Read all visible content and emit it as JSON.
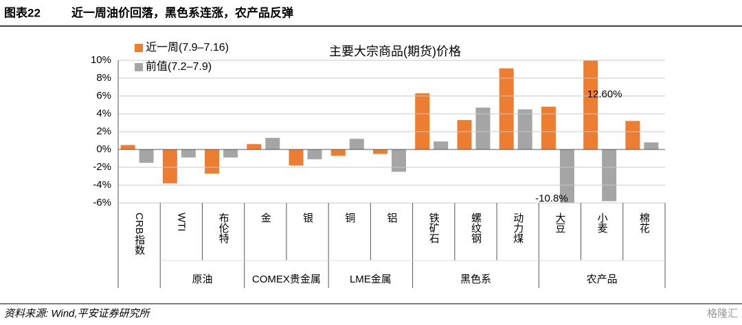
{
  "header": {
    "figure": "图表22",
    "title": "近一周油价回落，黑色系连涨，农产品反弹"
  },
  "footer": {
    "source": "资料来源: Wind,平安证券研究所",
    "watermark": "格隆汇"
  },
  "chart_data": {
    "type": "bar",
    "title": "主要大宗商品(期货)价格",
    "categories": [
      "CRB指数",
      "WTI",
      "布伦特",
      "金",
      "银",
      "铜",
      "铝",
      "铁矿石",
      "螺纹钢",
      "动力煤",
      "大豆",
      "小麦",
      "棉花"
    ],
    "category_groups": [
      null,
      "原油",
      "原油",
      "COMEX贵金属",
      "COMEX贵金属",
      "LME金属",
      "LME金属",
      "黑色系",
      "黑色系",
      "黑色系",
      "农产品",
      "农产品",
      "农产品"
    ],
    "series": [
      {
        "name": "近一周(7.9–7.16)",
        "color": "#ed7d31",
        "values": [
          0.5,
          -3.8,
          -2.7,
          0.6,
          -1.8,
          -0.7,
          -0.5,
          6.3,
          3.3,
          9.1,
          4.8,
          12.6,
          3.2
        ],
        "value_labels": [
          null,
          null,
          null,
          null,
          null,
          null,
          null,
          null,
          null,
          null,
          null,
          "12.60%",
          null
        ]
      },
      {
        "name": "前值(7.2–7.9)",
        "color": "#a5a5a5",
        "values": [
          -1.5,
          -0.9,
          -0.9,
          1.3,
          -1.1,
          1.2,
          -2.5,
          0.9,
          4.7,
          4.5,
          -10.8,
          -5.8,
          0.8
        ],
        "value_labels": [
          null,
          null,
          null,
          null,
          null,
          null,
          null,
          null,
          null,
          null,
          "-10.8%",
          null,
          null
        ]
      }
    ],
    "ylim": [
      -6,
      10
    ],
    "yticks": [
      {
        "value": -6,
        "label": "-6%"
      },
      {
        "value": -4,
        "label": "-4%"
      },
      {
        "value": -2,
        "label": "-2%"
      },
      {
        "value": 0,
        "label": "0%"
      },
      {
        "value": 2,
        "label": "2%"
      },
      {
        "value": 4,
        "label": "4%"
      },
      {
        "value": 6,
        "label": "6%"
      },
      {
        "value": 8,
        "label": "8%"
      },
      {
        "value": 10,
        "label": "10%"
      }
    ],
    "grid": true,
    "legend": "top-left"
  }
}
